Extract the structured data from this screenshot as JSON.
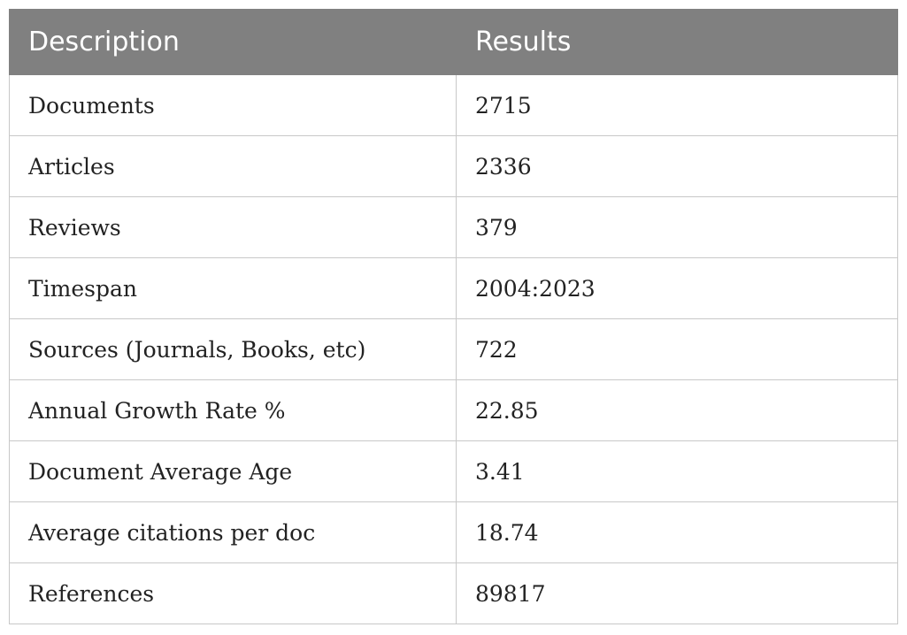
{
  "table": {
    "headers": [
      "Description",
      "Results"
    ],
    "rows": [
      {
        "description": "Documents",
        "result": "2715"
      },
      {
        "description": "Articles",
        "result": "2336"
      },
      {
        "description": "Reviews",
        "result": "379"
      },
      {
        "description": "Timespan",
        "result": "2004:2023"
      },
      {
        "description": "Sources (Journals, Books, etc)",
        "result": "722"
      },
      {
        "description": "Annual Growth Rate %",
        "result": "22.85"
      },
      {
        "description": "Document Average Age",
        "result": "3.41"
      },
      {
        "description": "Average citations per doc",
        "result": "18.74"
      },
      {
        "description": "References",
        "result": "89817"
      }
    ]
  },
  "colors": {
    "header_background": "#808080",
    "header_text": "#ffffff",
    "grid_line": "#c8c8c8"
  }
}
